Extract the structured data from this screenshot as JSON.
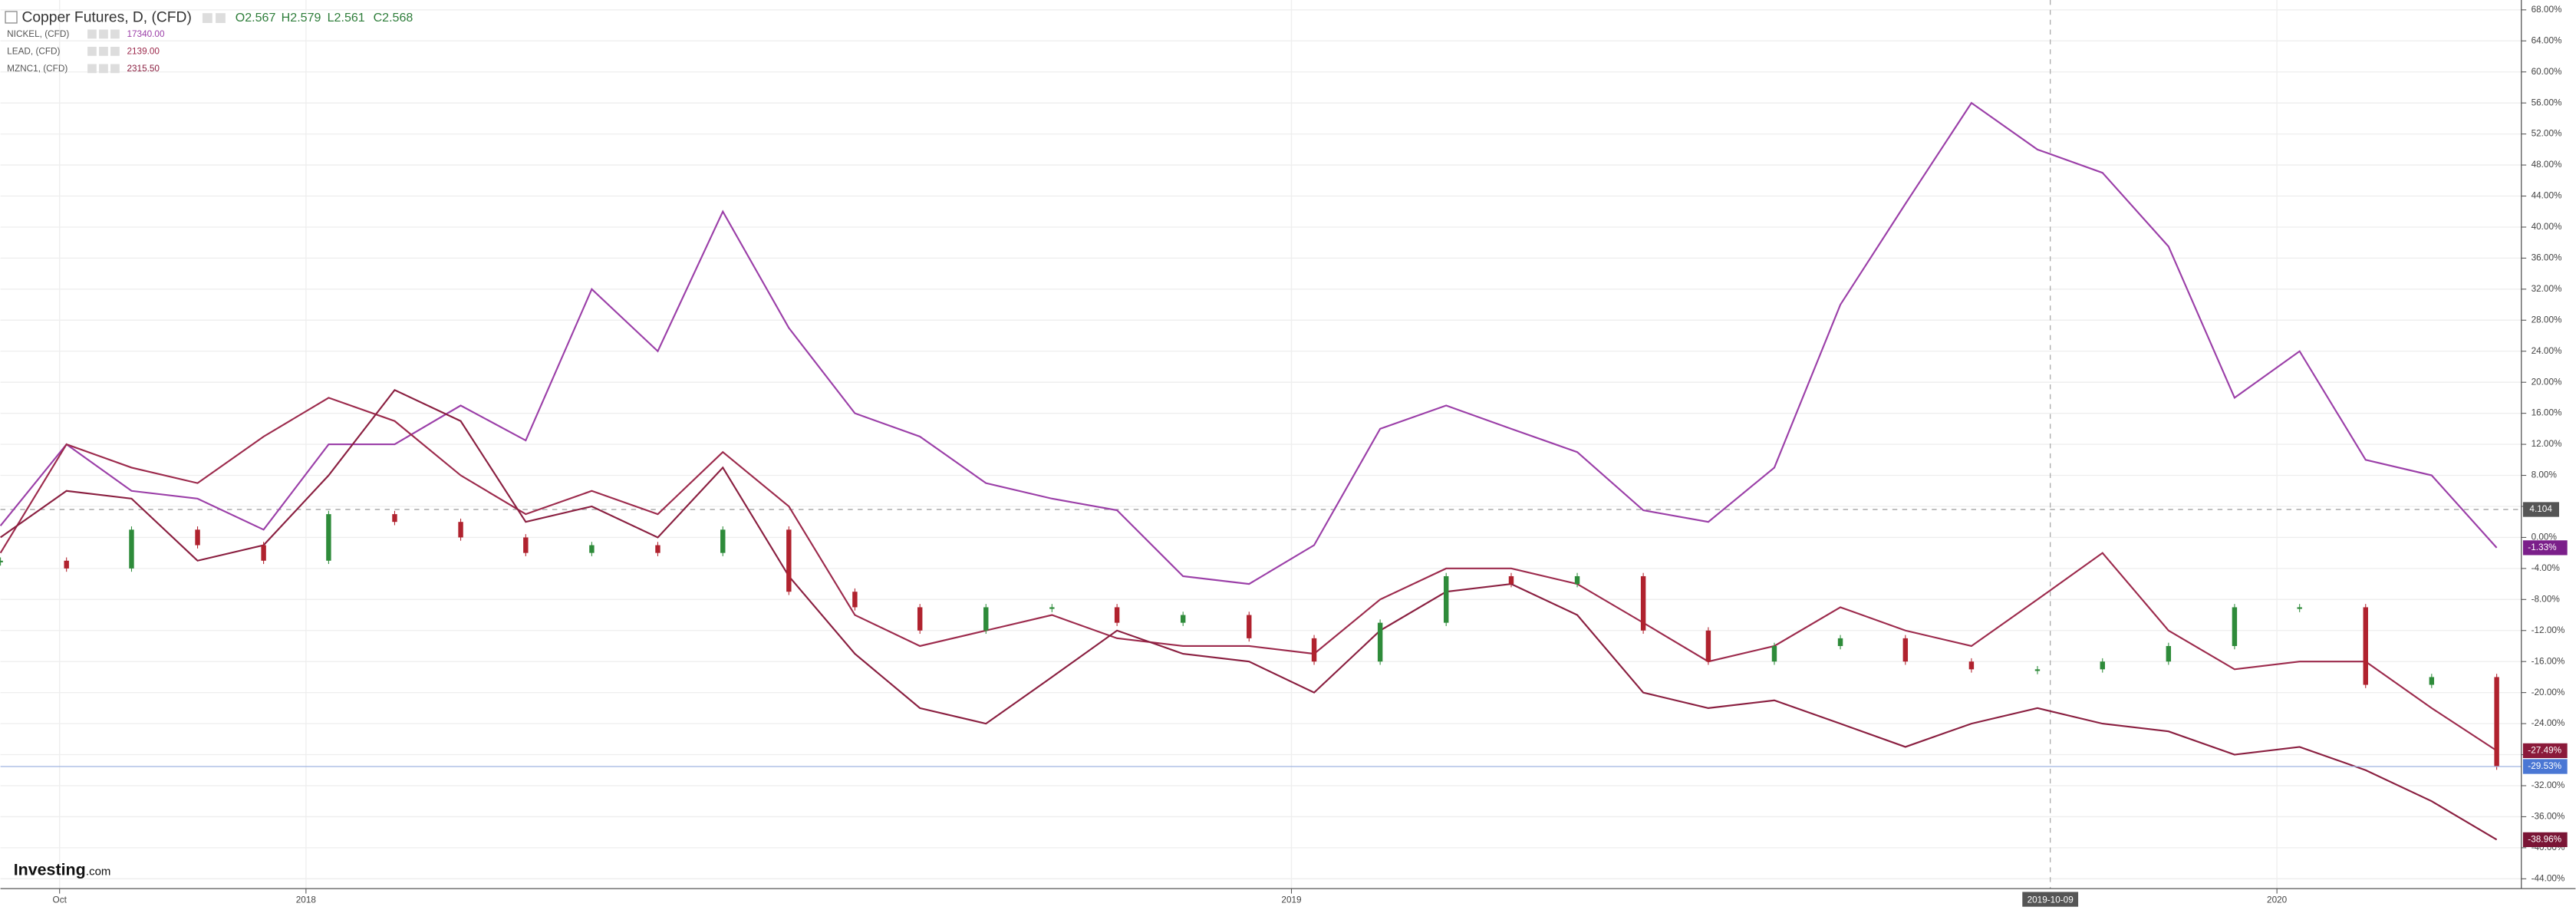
{
  "chart_data": {
    "type": "line",
    "ohlc": [
      "O2.567",
      "H2.579",
      "L2.561",
      "C2.568"
    ],
    "x": [
      2017.69,
      2017.757,
      2017.823,
      2017.89,
      2017.957,
      2018.023,
      2018.09,
      2018.157,
      2018.223,
      2018.29,
      2018.357,
      2018.423,
      2018.49,
      2018.557,
      2018.623,
      2018.69,
      2018.757,
      2018.823,
      2018.89,
      2018.957,
      2019.023,
      2019.09,
      2019.157,
      2019.223,
      2019.29,
      2019.357,
      2019.423,
      2019.49,
      2019.557,
      2019.623,
      2019.69,
      2019.757,
      2019.823,
      2019.89,
      2019.957,
      2020.023,
      2020.09,
      2020.157,
      2020.223
    ],
    "series": [
      {
        "name": "NICKEL, (CFD)",
        "last": "17340.00",
        "style": "line",
        "color": "#9b3fa8",
        "label_color": "#7b1f8a",
        "end_label": "-1.33%",
        "values": [
          1.5,
          12,
          6,
          5,
          1,
          12,
          12,
          17,
          12.5,
          32,
          24,
          42,
          27,
          16,
          13,
          7,
          5,
          3.5,
          -5,
          -6,
          -1,
          14,
          17,
          14,
          11,
          3.5,
          2,
          9,
          30,
          43,
          56,
          50,
          47,
          37.5,
          18,
          24,
          10,
          8,
          -1.33
        ]
      },
      {
        "name": "LEAD, (CFD)",
        "last": "2139.00",
        "style": "line",
        "color": "#9c2a4c",
        "label_color": "#8b1a3a",
        "end_label": "-27.49%",
        "values": [
          -2,
          12,
          9,
          7,
          13,
          18,
          15,
          8,
          3,
          6,
          3,
          11,
          4,
          -10,
          -14,
          -12,
          -10,
          -13,
          -14,
          -14,
          -15,
          -8,
          -4,
          -4,
          -6,
          -11,
          -16,
          -14,
          -9,
          -12,
          -14,
          -8,
          -2,
          -12,
          -17,
          -16,
          -16,
          -22,
          -27.49
        ]
      },
      {
        "name": "MZNC1, (CFD)",
        "last": "2315.50",
        "style": "line",
        "color": "#8a1f40",
        "label_color": "#7a1535",
        "end_label": "-38.96%",
        "values": [
          0,
          6,
          5,
          -3,
          -1,
          8,
          19,
          15,
          2,
          4,
          0,
          9,
          -5,
          -15,
          -22,
          -24,
          -18,
          -12,
          -15,
          -16,
          -20,
          -12,
          -7,
          -6,
          -10,
          -20,
          -22,
          -21,
          -24,
          -27,
          -24,
          -22,
          -24,
          -25,
          -28,
          -27,
          -30,
          -34,
          -38.96
        ]
      },
      {
        "name": "Copper Futures, D, (CFD)",
        "style": "candle",
        "color": "#4a77d4",
        "up_color": "#2e8b3a",
        "down_color": "#b0222e",
        "label_color": "#4a77d4",
        "end_label": "-29.53%",
        "values": [
          -3,
          -4,
          1,
          -1,
          -3,
          3,
          2,
          0,
          -2,
          -1,
          -2,
          1,
          -7,
          -9,
          -12,
          -9,
          -9,
          -11,
          -10,
          -13,
          -16,
          -11,
          -5,
          -6,
          -5,
          -12,
          -16,
          -14,
          -13,
          -16,
          -17,
          -17,
          -16,
          -14,
          -9,
          -9,
          -19,
          -18,
          -29.53
        ]
      }
    ],
    "xlim": [
      2017.69,
      2020.248
    ],
    "xticks": [
      {
        "value": 2017.75,
        "label": "Oct"
      },
      {
        "value": 2018,
        "label": "2018"
      },
      {
        "value": 2019,
        "label": "2019"
      },
      {
        "value": 2019.77,
        "label": "2019-10-09",
        "highlight": true
      },
      {
        "value": 2020,
        "label": "2020"
      }
    ],
    "ylim": [
      -44,
      68
    ],
    "yticks": [
      {
        "value": -44,
        "label": "-44.00%"
      },
      {
        "value": -40,
        "label": "-40.00%"
      },
      {
        "value": -36,
        "label": "-36.00%"
      },
      {
        "value": -32,
        "label": "-32.00%"
      },
      {
        "value": -28,
        "label": "-28.00%"
      },
      {
        "value": -24,
        "label": "-24.00%"
      },
      {
        "value": -20,
        "label": "-20.00%"
      },
      {
        "value": -16,
        "label": "-16.00%"
      },
      {
        "value": -12,
        "label": "-12.00%"
      },
      {
        "value": -8,
        "label": "-8.00%"
      },
      {
        "value": -4,
        "label": "-4.00%"
      },
      {
        "value": 0,
        "label": "0.00%"
      },
      {
        "value": 4,
        "label": "4.00%"
      },
      {
        "value": 8,
        "label": "8.00%"
      },
      {
        "value": 12,
        "label": "12.00%"
      },
      {
        "value": 16,
        "label": "16.00%"
      },
      {
        "value": 20,
        "label": "20.00%"
      },
      {
        "value": 24,
        "label": "24.00%"
      },
      {
        "value": 28,
        "label": "28.00%"
      },
      {
        "value": 32,
        "label": "32.00%"
      },
      {
        "value": 36,
        "label": "36.00%"
      },
      {
        "value": 40,
        "label": "40.00%"
      },
      {
        "value": 44,
        "label": "44.00%"
      },
      {
        "value": 48,
        "label": "48.00%"
      },
      {
        "value": 52,
        "label": "52.00%"
      },
      {
        "value": 56,
        "label": "56.00%"
      },
      {
        "value": 60,
        "label": "60.00%"
      },
      {
        "value": 64,
        "label": "64.00%"
      },
      {
        "value": 68,
        "label": "68.00%"
      }
    ],
    "reference_line": {
      "value": 3.6,
      "label": "4.104"
    },
    "grid": true,
    "watermark": "Investing",
    "watermark_suffix": ".com"
  }
}
